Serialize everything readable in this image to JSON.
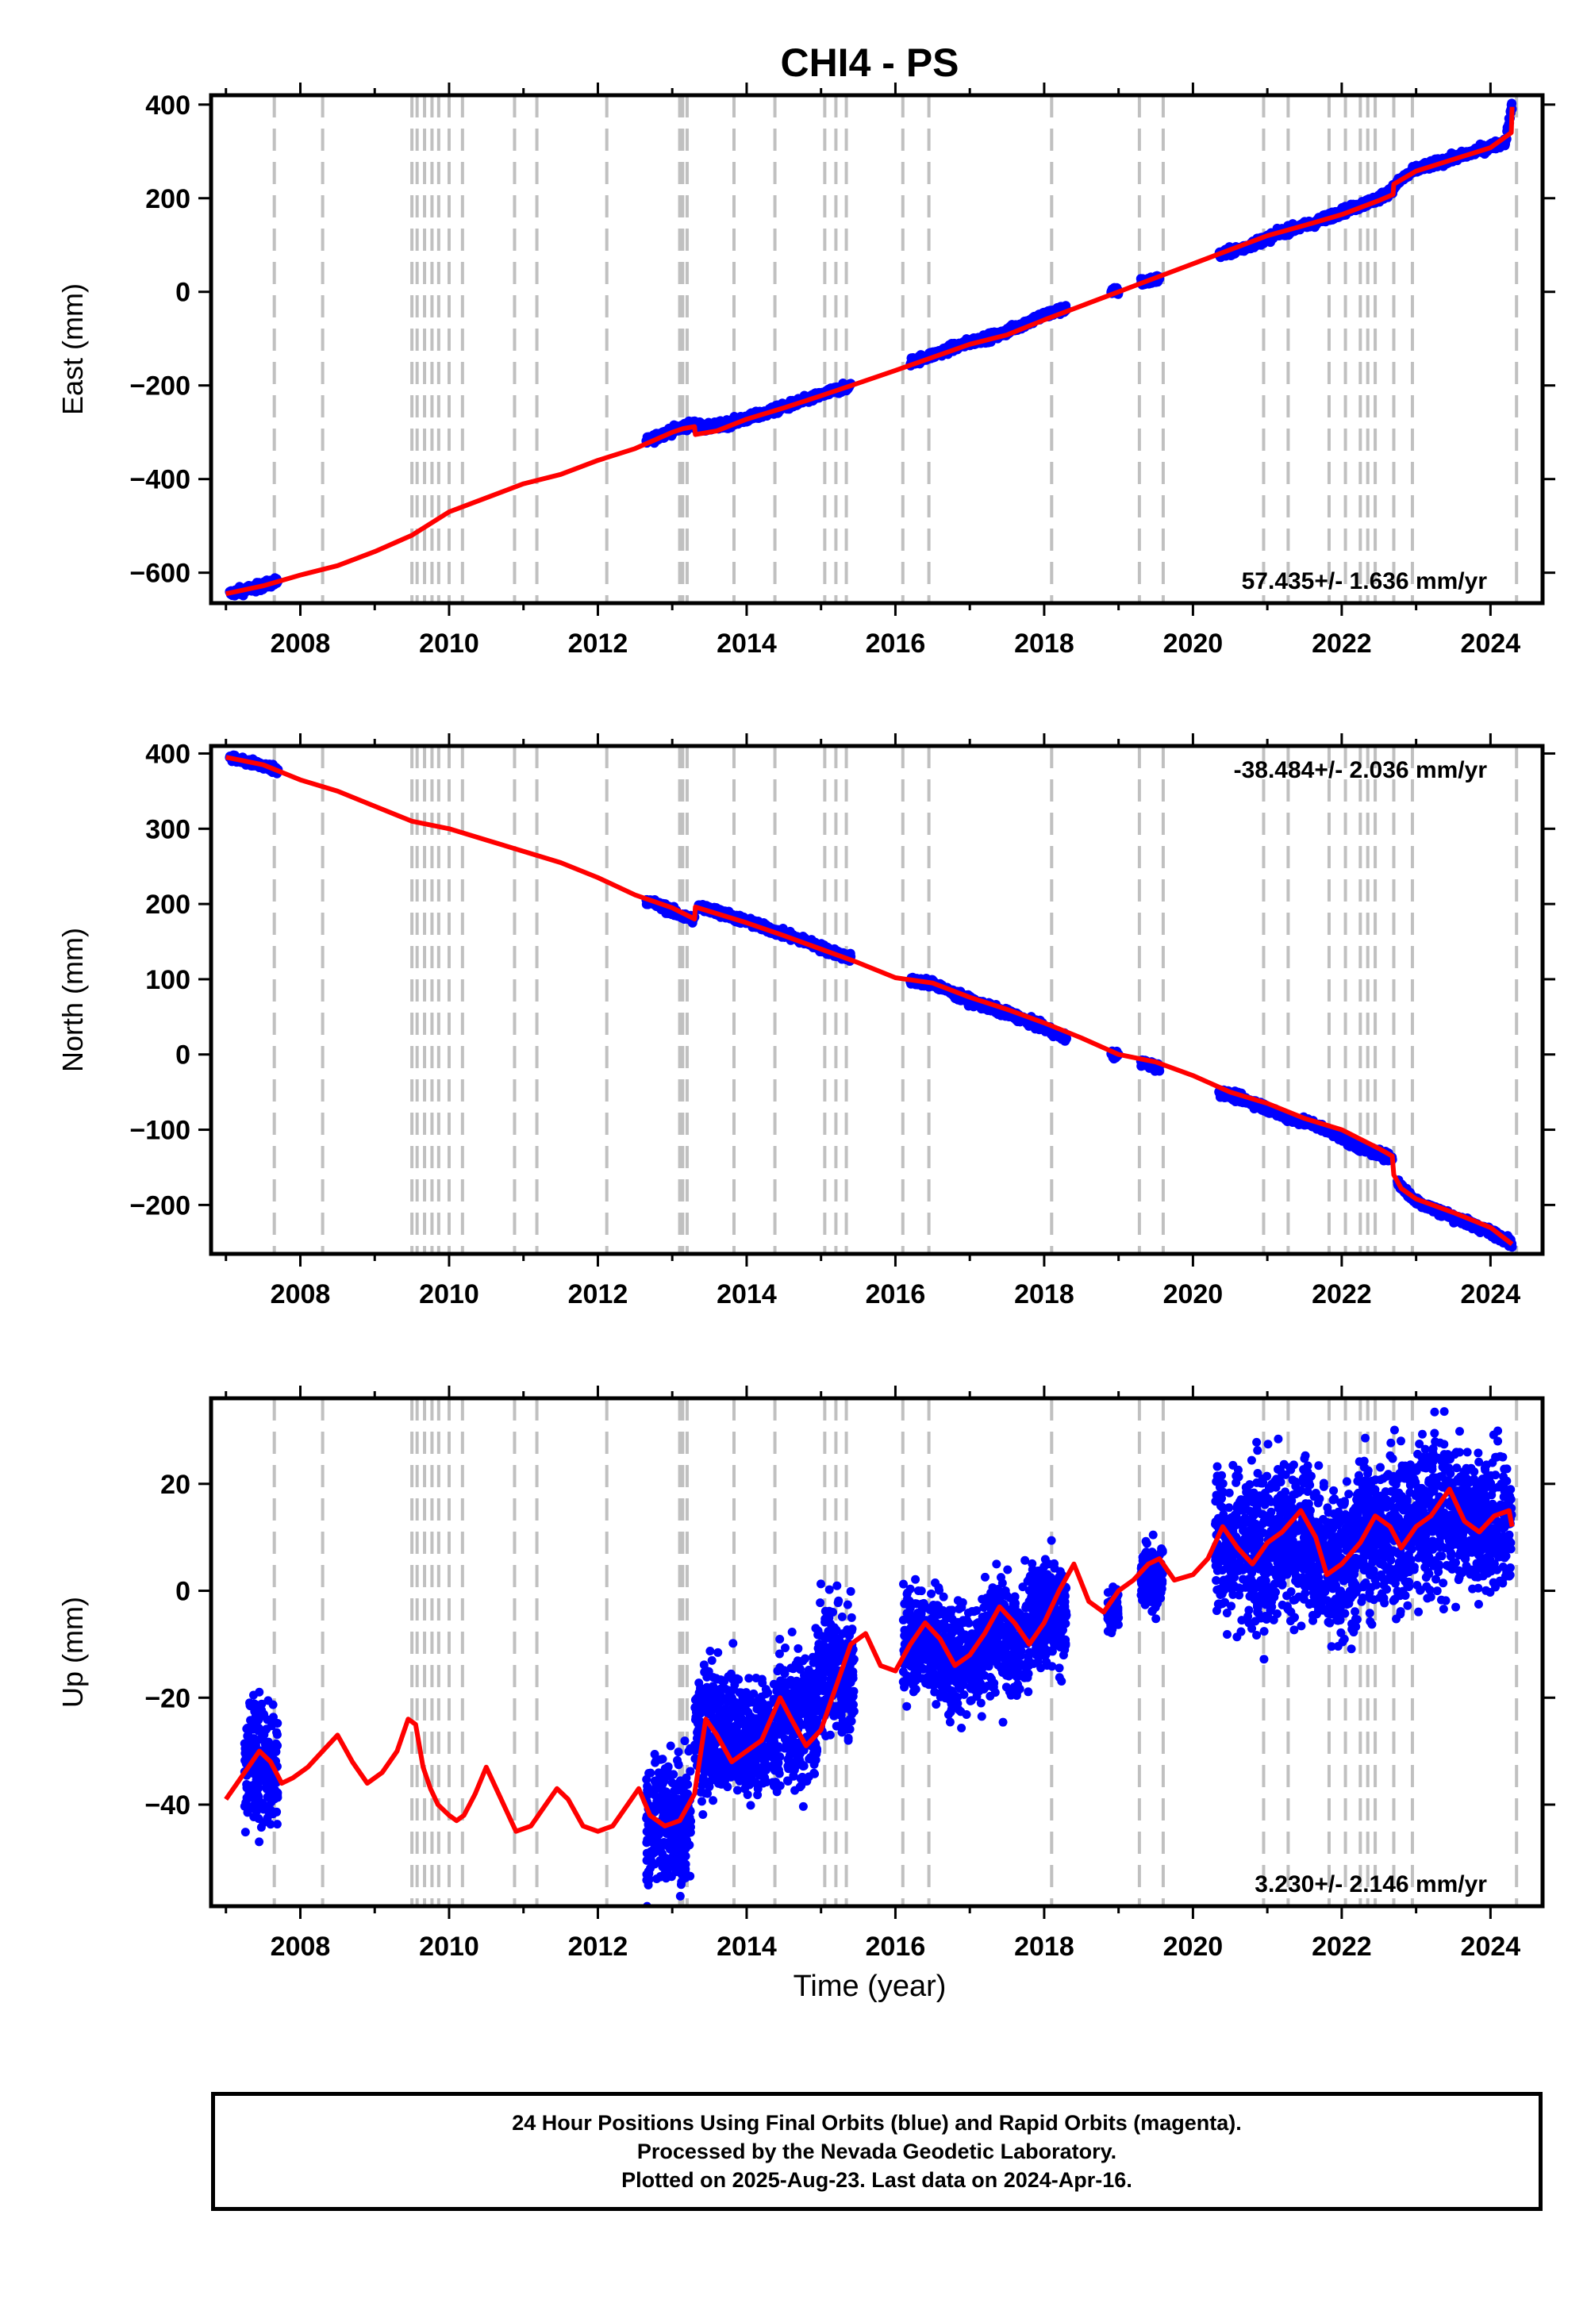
{
  "title": "CHI4 - PS",
  "xlabel": "Time (year)",
  "x_ticks": [
    2008,
    2010,
    2012,
    2014,
    2016,
    2018,
    2020,
    2022,
    2024
  ],
  "xlim": [
    2006.8,
    2024.7
  ],
  "colors": {
    "data": "#0000ff",
    "model": "#ff0000",
    "rapid": "#ff00ff",
    "steps": "#c0c0c0",
    "frame": "#000000"
  },
  "step_dates": [
    2007.65,
    2008.3,
    2009.5,
    2009.57,
    2009.67,
    2009.77,
    2009.86,
    2010.0,
    2010.18,
    2010.88,
    2011.18,
    2012.12,
    2013.1,
    2013.14,
    2013.2,
    2013.83,
    2014.38,
    2015.05,
    2015.2,
    2015.34,
    2016.1,
    2016.45,
    2018.1,
    2019.28,
    2019.6,
    2020.95,
    2021.28,
    2021.83,
    2022.05,
    2022.25,
    2022.35,
    2022.45,
    2022.7,
    2022.95,
    2024.35
  ],
  "footer": {
    "line1": "24 Hour Positions Using Final Orbits (blue) and Rapid Orbits (magenta).",
    "line2": "Processed by the Nevada Geodetic Laboratory.",
    "line3": "Plotted on 2025-Aug-23. Last data on 2024-Apr-16."
  },
  "chart_data": [
    {
      "type": "scatter",
      "name": "east",
      "ylabel": "East (mm)",
      "ylim": [
        -665,
        420
      ],
      "y_ticks": [
        -600,
        -400,
        -200,
        0,
        200,
        400
      ],
      "y_tick_labels": [
        "−600",
        "−400",
        "−200",
        "0",
        "200",
        "400"
      ],
      "rate_label": "57.435+/- 1.636 mm/yr",
      "rate_position": "bottom-right",
      "observed_segments": [
        {
          "x": [
            2007.05,
            2007.3,
            2007.5,
            2007.7
          ],
          "y": [
            -645,
            -635,
            -628,
            -617
          ]
        },
        {
          "x": [
            2012.65,
            2012.9,
            2013.15,
            2013.3,
            2013.45,
            2013.7,
            2014.0,
            2014.3,
            2014.6,
            2014.9,
            2015.2,
            2015.4
          ],
          "y": [
            -320,
            -302,
            -288,
            -283,
            -291,
            -283,
            -271,
            -257,
            -241,
            -226,
            -210,
            -202
          ]
        },
        {
          "x": [
            2016.2,
            2016.5,
            2016.8,
            2017.1,
            2017.4,
            2017.7,
            2018.0,
            2018.3
          ],
          "y": [
            -150,
            -135,
            -118,
            -103,
            -92,
            -70,
            -50,
            -35
          ]
        },
        {
          "x": [
            2018.9,
            2019.0
          ],
          "y": [
            -1,
            2
          ]
        },
        {
          "x": [
            2019.3,
            2019.55
          ],
          "y": [
            20,
            28
          ]
        },
        {
          "x": [
            2020.35,
            2020.7,
            2021.0,
            2021.3,
            2021.6,
            2021.9,
            2022.2,
            2022.5,
            2022.65,
            2022.8,
            2023.0,
            2023.3,
            2023.6,
            2023.9,
            2024.2,
            2024.29
          ],
          "y": [
            78,
            95,
            115,
            133,
            145,
            165,
            182,
            200,
            215,
            240,
            262,
            276,
            290,
            305,
            320,
            400
          ]
        }
      ],
      "model": {
        "x": [
          2007.0,
          2007.5,
          2008.0,
          2008.5,
          2009.0,
          2009.5,
          2010.0,
          2010.5,
          2011.0,
          2011.5,
          2012.0,
          2012.5,
          2013.0,
          2013.15,
          2013.3,
          2013.31,
          2013.6,
          2014.0,
          2014.5,
          2015.0,
          2015.5,
          2016.0,
          2016.5,
          2017.0,
          2017.5,
          2018.0,
          2018.5,
          2019.0,
          2019.5,
          2020.0,
          2020.5,
          2021.0,
          2021.5,
          2022.0,
          2022.5,
          2022.69,
          2022.7,
          2023.0,
          2023.5,
          2024.0,
          2024.28,
          2024.29
        ],
        "y": [
          -645,
          -628,
          -605,
          -585,
          -555,
          -520,
          -470,
          -440,
          -410,
          -390,
          -360,
          -335,
          -300,
          -292,
          -288,
          -305,
          -297,
          -272,
          -248,
          -222,
          -195,
          -168,
          -140,
          -112,
          -92,
          -60,
          -30,
          0,
          30,
          60,
          90,
          120,
          142,
          165,
          195,
          208,
          230,
          258,
          283,
          308,
          340,
          395
        ]
      }
    },
    {
      "type": "scatter",
      "name": "north",
      "ylabel": "North (mm)",
      "ylim": [
        -265,
        410
      ],
      "y_ticks": [
        -200,
        -100,
        0,
        100,
        200,
        300,
        400
      ],
      "y_tick_labels": [
        "−200",
        "−100",
        "0",
        "100",
        "200",
        "300",
        "400"
      ],
      "rate_label": "-38.484+/- 2.036 mm/yr",
      "rate_position": "top-right",
      "observed_segments": [
        {
          "x": [
            2007.05,
            2007.3,
            2007.5,
            2007.7
          ],
          "y": [
            395,
            388,
            384,
            378
          ]
        },
        {
          "x": [
            2012.65,
            2012.9,
            2013.15,
            2013.3
          ],
          "y": [
            205,
            195,
            183,
            180
          ]
        },
        {
          "x": [
            2013.35,
            2013.6,
            2013.9,
            2014.2,
            2014.5,
            2014.8,
            2015.1,
            2015.4
          ],
          "y": [
            196,
            190,
            180,
            170,
            160,
            150,
            138,
            128
          ]
        },
        {
          "x": [
            2016.2,
            2016.5,
            2016.8,
            2017.1,
            2017.4,
            2017.7,
            2018.0,
            2018.3
          ],
          "y": [
            98,
            95,
            80,
            68,
            58,
            48,
            35,
            22
          ]
        },
        {
          "x": [
            2018.9,
            2019.0
          ],
          "y": [
            0,
            -2
          ]
        },
        {
          "x": [
            2019.3,
            2019.55
          ],
          "y": [
            -10,
            -18
          ]
        },
        {
          "x": [
            2020.35,
            2020.7,
            2021.0,
            2021.3,
            2021.6,
            2021.9,
            2022.2,
            2022.5,
            2022.68
          ],
          "y": [
            -50,
            -60,
            -72,
            -85,
            -92,
            -105,
            -122,
            -132,
            -138
          ]
        },
        {
          "x": [
            2022.75,
            2023.0,
            2023.3,
            2023.6,
            2023.9,
            2024.2,
            2024.29
          ],
          "y": [
            -170,
            -195,
            -208,
            -220,
            -232,
            -245,
            -252
          ]
        }
      ],
      "model": {
        "x": [
          2007.0,
          2007.5,
          2008.0,
          2008.5,
          2009.0,
          2009.5,
          2010.0,
          2010.5,
          2011.0,
          2011.5,
          2012.0,
          2012.5,
          2013.0,
          2013.3,
          2013.31,
          2014.0,
          2014.5,
          2015.0,
          2015.5,
          2016.0,
          2016.5,
          2017.0,
          2017.5,
          2018.0,
          2018.5,
          2019.0,
          2019.5,
          2020.0,
          2020.5,
          2021.0,
          2021.5,
          2022.0,
          2022.5,
          2022.68,
          2022.7,
          2022.8,
          2023.0,
          2023.5,
          2024.0,
          2024.29
        ],
        "y": [
          395,
          385,
          365,
          350,
          330,
          310,
          300,
          285,
          270,
          255,
          235,
          212,
          195,
          180,
          196,
          175,
          158,
          140,
          122,
          102,
          95,
          76,
          60,
          42,
          22,
          0,
          -10,
          -28,
          -50,
          -65,
          -85,
          -100,
          -125,
          -135,
          -160,
          -178,
          -192,
          -210,
          -230,
          -252
        ]
      }
    },
    {
      "type": "scatter",
      "name": "up",
      "ylabel": "Up (mm)",
      "ylim": [
        -59,
        36
      ],
      "y_ticks": [
        -40,
        -20,
        0,
        20
      ],
      "y_tick_labels": [
        "−40",
        "−20",
        "0",
        "20"
      ],
      "rate_label": "3.230+/- 2.146 mm/yr",
      "rate_position": "bottom-right",
      "observed_segments": [
        {
          "x": [
            2007.25,
            2007.7
          ],
          "mean": -33,
          "spread": 6
        },
        {
          "x": [
            2012.65,
            2013.25
          ],
          "mean": -43,
          "spread": 6
        },
        {
          "x": [
            2013.3,
            2013.9
          ],
          "mean": -26,
          "spread": 6
        },
        {
          "x": [
            2013.9,
            2014.4
          ],
          "mean": -28,
          "spread": 5
        },
        {
          "x": [
            2014.4,
            2014.95
          ],
          "mean": -24,
          "spread": 6
        },
        {
          "x": [
            2014.95,
            2015.45
          ],
          "mean": -15,
          "spread": 6
        },
        {
          "x": [
            2016.1,
            2016.6
          ],
          "mean": -9,
          "spread": 5
        },
        {
          "x": [
            2016.6,
            2017.2
          ],
          "mean": -12,
          "spread": 5
        },
        {
          "x": [
            2017.2,
            2017.8
          ],
          "mean": -9,
          "spread": 5
        },
        {
          "x": [
            2017.8,
            2018.3
          ],
          "mean": -4,
          "spread": 5
        },
        {
          "x": [
            2018.85,
            2019.0
          ],
          "mean": -4,
          "spread": 2
        },
        {
          "x": [
            2019.3,
            2019.6
          ],
          "mean": 3,
          "spread": 3
        },
        {
          "x": [
            2020.3,
            2021.0
          ],
          "mean": 8,
          "spread": 7
        },
        {
          "x": [
            2021.0,
            2021.6
          ],
          "mean": 10,
          "spread": 7
        },
        {
          "x": [
            2021.6,
            2022.2
          ],
          "mean": 6,
          "spread": 7
        },
        {
          "x": [
            2022.2,
            2022.9
          ],
          "mean": 11,
          "spread": 7
        },
        {
          "x": [
            2022.9,
            2023.6
          ],
          "mean": 14,
          "spread": 7
        },
        {
          "x": [
            2023.6,
            2024.29
          ],
          "mean": 13,
          "spread": 6
        }
      ],
      "model": {
        "x": [
          2007.0,
          2007.15,
          2007.3,
          2007.45,
          2007.6,
          2007.75,
          2007.9,
          2008.1,
          2008.3,
          2008.5,
          2008.7,
          2008.9,
          2009.1,
          2009.3,
          2009.45,
          2009.55,
          2009.65,
          2009.75,
          2009.85,
          2010.0,
          2010.1,
          2010.2,
          2010.35,
          2010.5,
          2010.7,
          2010.9,
          2011.1,
          2011.3,
          2011.45,
          2011.6,
          2011.8,
          2012.0,
          2012.2,
          2012.4,
          2012.55,
          2012.7,
          2012.9,
          2013.1,
          2013.3,
          2013.45,
          2013.6,
          2013.8,
          2014.0,
          2014.2,
          2014.45,
          2014.6,
          2014.8,
          2015.0,
          2015.2,
          2015.4,
          2015.6,
          2015.8,
          2016.0,
          2016.2,
          2016.4,
          2016.6,
          2016.8,
          2017.0,
          2017.2,
          2017.4,
          2017.6,
          2017.8,
          2018.0,
          2018.2,
          2018.4,
          2018.6,
          2018.8,
          2019.0,
          2019.2,
          2019.4,
          2019.55,
          2019.75,
          2020.0,
          2020.2,
          2020.4,
          2020.6,
          2020.8,
          2021.0,
          2021.2,
          2021.45,
          2021.65,
          2021.8,
          2022.0,
          2022.25,
          2022.45,
          2022.65,
          2022.8,
          2023.0,
          2023.2,
          2023.45,
          2023.65,
          2023.85,
          2024.05,
          2024.25,
          2024.29
        ],
        "y": [
          -39,
          -36,
          -33,
          -30,
          -32,
          -36,
          -35,
          -33,
          -30,
          -27,
          -32,
          -36,
          -34,
          -30,
          -24,
          -25,
          -33,
          -37,
          -40,
          -42,
          -43,
          -42,
          -38,
          -33,
          -39,
          -45,
          -44,
          -40,
          -37,
          -39,
          -44,
          -45,
          -44,
          -40,
          -37,
          -42,
          -44,
          -43,
          -38,
          -24,
          -27,
          -32,
          -30,
          -28,
          -20,
          -24,
          -29,
          -26,
          -18,
          -10,
          -8,
          -14,
          -15,
          -10,
          -6,
          -9,
          -14,
          -12,
          -8,
          -3,
          -6,
          -10,
          -6,
          0,
          5,
          -2,
          -4,
          0,
          2,
          5,
          6,
          2,
          3,
          6,
          12,
          8,
          5,
          9,
          11,
          15,
          10,
          3,
          5,
          9,
          14,
          12,
          8,
          12,
          14,
          19,
          13,
          11,
          14,
          15,
          12
        ]
      }
    }
  ]
}
